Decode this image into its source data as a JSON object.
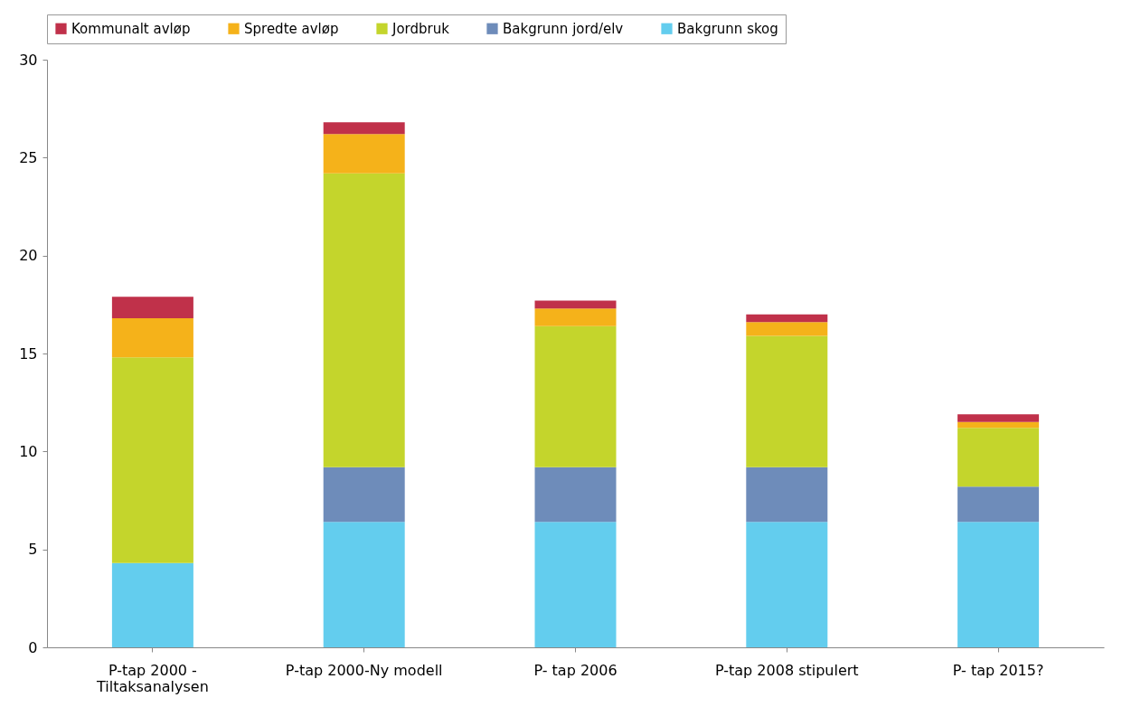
{
  "chart_data": {
    "type": "bar",
    "stacked": true,
    "categories": [
      "P-tap 2000 -\nTiltaksanalysen",
      "P-tap 2000-Ny modell",
      "P- tap 2006",
      "P-tap 2008 stipulert",
      "P- tap 2015?"
    ],
    "series": [
      {
        "name": "Bakgrunn skog",
        "color": "#63cdee",
        "values": [
          4.3,
          6.4,
          6.4,
          6.4,
          6.4
        ]
      },
      {
        "name": "Bakgrunn jord/elv",
        "color": "#6e8cba",
        "values": [
          0,
          2.8,
          2.8,
          2.8,
          1.8
        ]
      },
      {
        "name": "Jordbruk",
        "color": "#c4d52c",
        "values": [
          10.5,
          15.0,
          7.2,
          6.7,
          3.0
        ]
      },
      {
        "name": "Spredte avløp",
        "color": "#f5b21a",
        "values": [
          2.0,
          2.0,
          0.9,
          0.7,
          0.3
        ]
      },
      {
        "name": "Kommunalt avløp",
        "color": "#c0314a",
        "values": [
          1.1,
          0.6,
          0.4,
          0.4,
          0.4
        ]
      }
    ],
    "ylim": [
      0,
      30
    ],
    "yticks": [
      0,
      5,
      10,
      15,
      20,
      25,
      30
    ],
    "grid": false,
    "legend": "top"
  }
}
